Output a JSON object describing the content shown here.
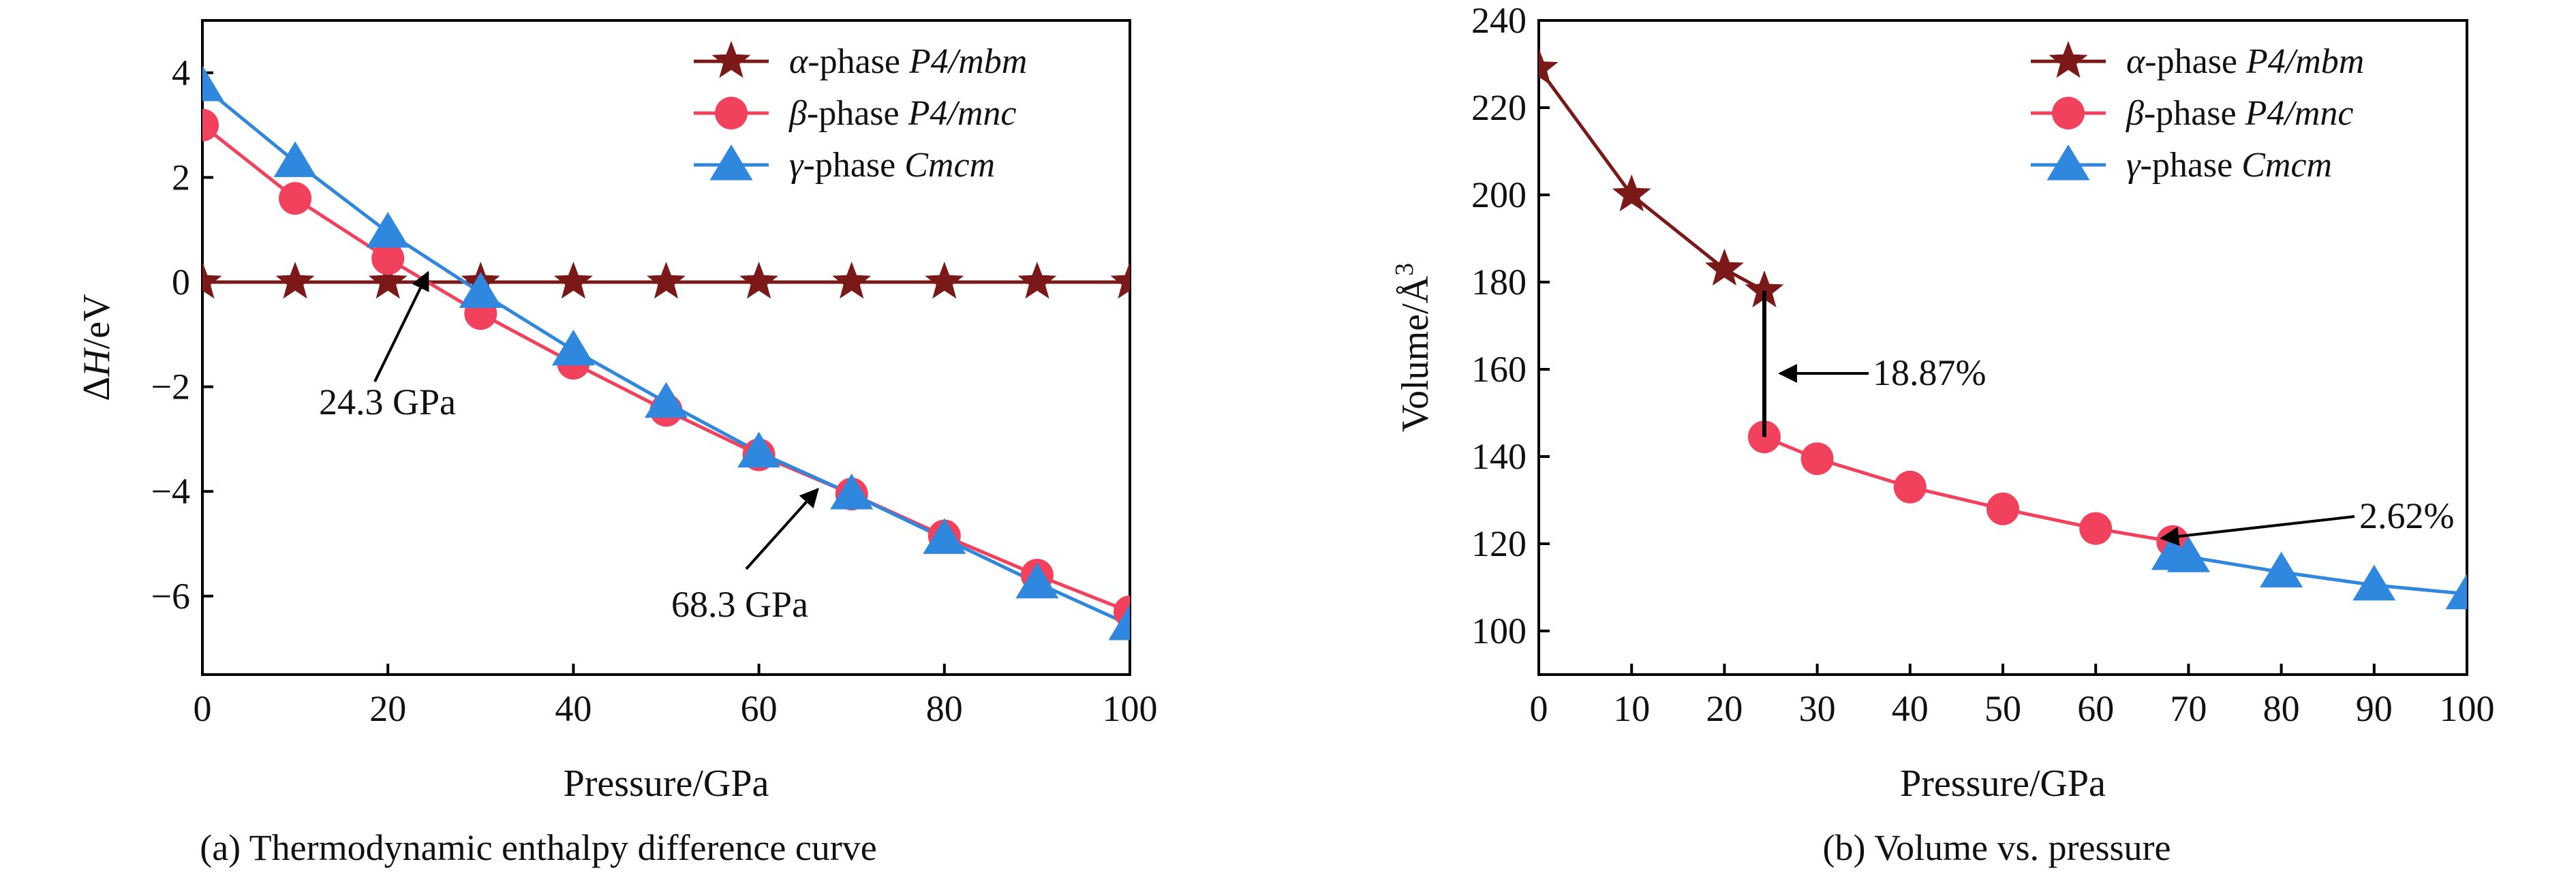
{
  "chart_data": [
    {
      "type": "line",
      "caption": "(a) Thermodynamic enthalpy difference curve",
      "xlabel": "Pressure/GPa",
      "ylabel_main": "ΔH",
      "ylabel_unit": "/eV",
      "xlim": [
        0,
        100
      ],
      "ylim": [
        -7.5,
        5
      ],
      "xticks": [
        0,
        20,
        40,
        60,
        80,
        100
      ],
      "yticks": [
        4,
        2,
        0,
        -2,
        -4,
        -6
      ],
      "ytick_labels": [
        "4",
        "2",
        "0",
        "−2",
        "−4",
        "−6"
      ],
      "grid": false,
      "legend_position": "top-right",
      "series": [
        {
          "name_greek": "α",
          "name_rest": "-phase ",
          "name_group": "P4/mbm",
          "color": "#7b1818",
          "marker": "star",
          "x": [
            0,
            10,
            20,
            30,
            40,
            50,
            60,
            70,
            80,
            90,
            100
          ],
          "y": [
            0,
            0,
            0,
            0,
            0,
            0,
            0,
            0,
            0,
            0,
            0
          ]
        },
        {
          "name_greek": "β",
          "name_rest": "-phase ",
          "name_group": "P4/mnc",
          "color": "#f2415c",
          "marker": "circle",
          "x": [
            0,
            10,
            20,
            30,
            40,
            50,
            60,
            70,
            80,
            90,
            100
          ],
          "y": [
            3.0,
            1.6,
            0.45,
            -0.6,
            -1.55,
            -2.45,
            -3.3,
            -4.05,
            -4.85,
            -5.6,
            -6.3
          ]
        },
        {
          "name_greek": "γ",
          "name_rest": "-phase ",
          "name_group": "Cmcm",
          "color": "#2f87de",
          "marker": "triangle",
          "x": [
            0,
            10,
            20,
            30,
            40,
            50,
            60,
            70,
            80,
            90,
            100
          ],
          "y": [
            3.75,
            2.3,
            0.95,
            -0.2,
            -1.3,
            -2.3,
            -3.25,
            -4.05,
            -4.9,
            -5.75,
            -6.55
          ]
        }
      ],
      "annotations": [
        {
          "text": "24.3 GPa",
          "x": 24.3,
          "y": 0
        },
        {
          "text": "68.3 GPa",
          "x": 68.3,
          "y": -4.0
        }
      ]
    },
    {
      "type": "line",
      "caption": "(b) Volume vs. pressure",
      "xlabel": "Pressure/GPa",
      "ylabel_main": "Volume/Å",
      "ylabel_sup": "3",
      "xlim": [
        0,
        100
      ],
      "ylim": [
        90,
        240
      ],
      "xticks": [
        0,
        10,
        20,
        30,
        40,
        50,
        60,
        70,
        80,
        90,
        100
      ],
      "yticks": [
        100,
        120,
        140,
        160,
        180,
        200,
        220,
        240
      ],
      "grid": false,
      "legend_position": "top-right",
      "series": [
        {
          "name_greek": "α",
          "name_rest": "-phase ",
          "name_group": "P4/mbm",
          "color": "#7b1818",
          "marker": "star",
          "x": [
            0,
            10,
            20,
            24.3
          ],
          "y": [
            229,
            200,
            183,
            178
          ]
        },
        {
          "name_greek": "β",
          "name_rest": "-phase ",
          "name_group": "P4/mnc",
          "color": "#f2415c",
          "marker": "circle",
          "x": [
            24.3,
            30,
            40,
            50,
            60,
            68.3
          ],
          "y": [
            144.5,
            139.5,
            133,
            128,
            123.5,
            120.5
          ]
        },
        {
          "name_greek": "γ",
          "name_rest": "-phase ",
          "name_group": "Cmcm",
          "color": "#2f87de",
          "marker": "triangle",
          "x": [
            68.3,
            70,
            80,
            90,
            100
          ],
          "y": [
            117.5,
            117,
            113.5,
            110.5,
            108.5
          ]
        }
      ],
      "annotations": [
        {
          "text": "18.87%",
          "x": 24.3,
          "y": 161
        },
        {
          "text": "2.62%",
          "x": 68.3,
          "y": 119
        }
      ]
    }
  ]
}
